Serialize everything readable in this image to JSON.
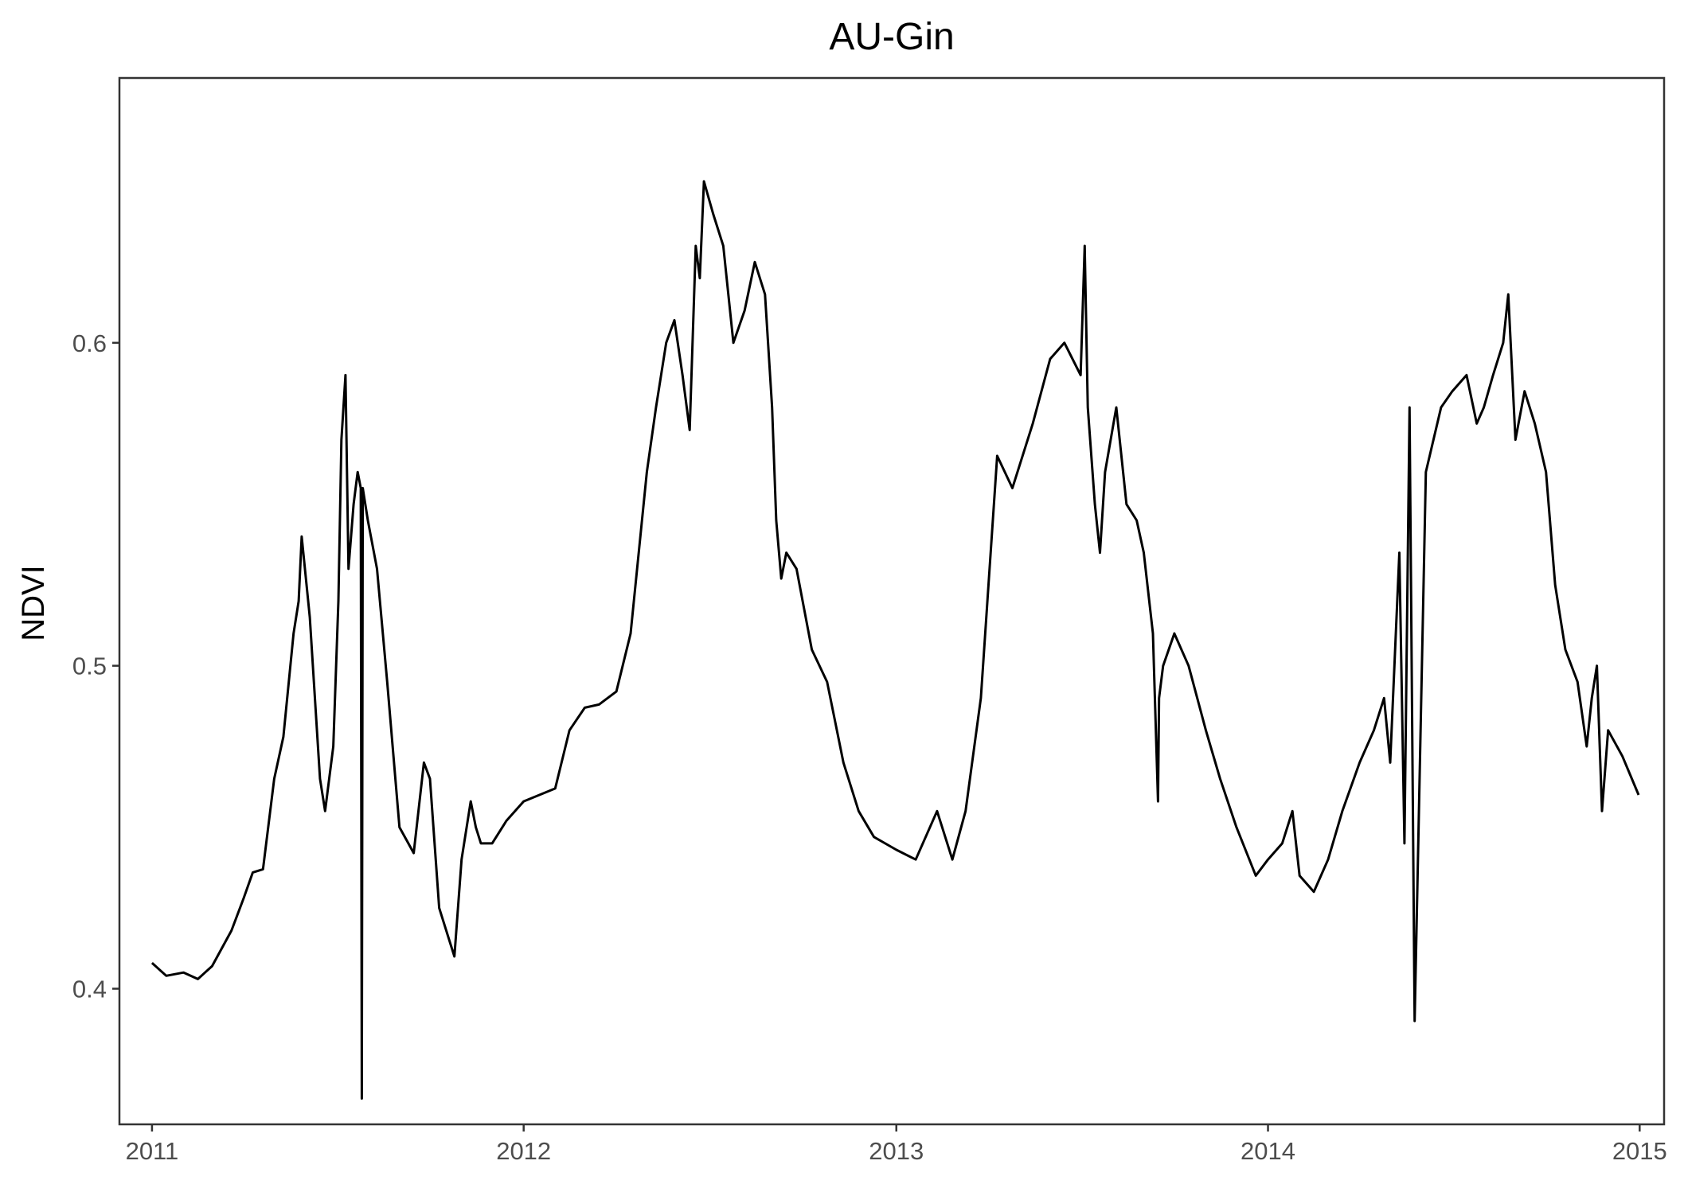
{
  "chart_data": {
    "type": "line",
    "title": "AU-Gin",
    "xlabel": "",
    "ylabel": "NDVI",
    "xlim": [
      "2010-11-30",
      "2015-01-25"
    ],
    "ylim": [
      0.358,
      0.682
    ],
    "x_ticks": [
      "2011",
      "2012",
      "2013",
      "2014",
      "2015"
    ],
    "y_ticks": [
      "0.4",
      "0.5",
      "0.6"
    ],
    "grid": false,
    "legend": "none",
    "line_color": "#000000",
    "series": [
      {
        "x": [
          "2011-01-01",
          "2011-01-15",
          "2011-02-01",
          "2011-02-15",
          "2011-03-01",
          "2011-03-20",
          "2011-04-01",
          "2011-04-10",
          "2011-04-20",
          "2011-05-01",
          "2011-05-10",
          "2011-05-20",
          "2011-05-25",
          "2011-05-28",
          "2011-06-05",
          "2011-06-15",
          "2011-06-20",
          "2011-06-28",
          "2011-07-03",
          "2011-07-06",
          "2011-07-10",
          "2011-07-13",
          "2011-07-18",
          "2011-07-22",
          "2011-07-25",
          "2011-07-26",
          "2011-07-27",
          "2011-08-01",
          "2011-08-10",
          "2011-08-20",
          "2011-09-01",
          "2011-09-15",
          "2011-09-25",
          "2011-10-01",
          "2011-10-10",
          "2011-10-20",
          "2011-10-25",
          "2011-11-01",
          "2011-11-10",
          "2011-11-15",
          "2011-11-20",
          "2011-12-01",
          "2011-12-15",
          "2012-01-01",
          "2012-02-01",
          "2012-02-15",
          "2012-03-01",
          "2012-03-15",
          "2012-04-01",
          "2012-04-15",
          "2012-05-01",
          "2012-05-10",
          "2012-05-20",
          "2012-05-28",
          "2012-06-05",
          "2012-06-12",
          "2012-06-18",
          "2012-06-22",
          "2012-06-26",
          "2012-07-05",
          "2012-07-15",
          "2012-07-25",
          "2012-08-05",
          "2012-08-15",
          "2012-08-25",
          "2012-09-01",
          "2012-09-05",
          "2012-09-10",
          "2012-09-15",
          "2012-09-25",
          "2012-10-10",
          "2012-10-25",
          "2012-11-10",
          "2012-11-25",
          "2012-12-10",
          "2013-01-01",
          "2013-01-20",
          "2013-02-10",
          "2013-02-25",
          "2013-03-10",
          "2013-03-25",
          "2013-04-10",
          "2013-04-25",
          "2013-05-15",
          "2013-06-01",
          "2013-06-15",
          "2013-07-01",
          "2013-07-05",
          "2013-07-08",
          "2013-07-15",
          "2013-07-20",
          "2013-07-25",
          "2013-08-05",
          "2013-08-15",
          "2013-08-25",
          "2013-09-01",
          "2013-09-10",
          "2013-09-15",
          "2013-09-16",
          "2013-09-20",
          "2013-10-01",
          "2013-10-15",
          "2013-11-01",
          "2013-11-15",
          "2013-12-01",
          "2013-12-20",
          "2014-01-01",
          "2014-01-15",
          "2014-01-25",
          "2014-02-01",
          "2014-02-15",
          "2014-03-01",
          "2014-03-15",
          "2014-04-01",
          "2014-04-15",
          "2014-04-25",
          "2014-05-01",
          "2014-05-10",
          "2014-05-15",
          "2014-05-20",
          "2014-05-25",
          "2014-06-05",
          "2014-06-20",
          "2014-07-01",
          "2014-07-15",
          "2014-07-25",
          "2014-08-01",
          "2014-08-10",
          "2014-08-20",
          "2014-08-25",
          "2014-09-01",
          "2014-09-10",
          "2014-09-20",
          "2014-10-01",
          "2014-10-10",
          "2014-10-20",
          "2014-11-01",
          "2014-11-10",
          "2014-11-15",
          "2014-11-20",
          "2014-11-25",
          "2014-12-01",
          "2014-12-15",
          "2014-12-31"
        ],
        "y": [
          0.408,
          0.404,
          0.405,
          0.403,
          0.407,
          0.418,
          0.428,
          0.436,
          0.437,
          0.465,
          0.478,
          0.51,
          0.52,
          0.54,
          0.515,
          0.465,
          0.455,
          0.475,
          0.52,
          0.57,
          0.59,
          0.53,
          0.55,
          0.56,
          0.555,
          0.366,
          0.555,
          0.545,
          0.53,
          0.495,
          0.45,
          0.442,
          0.47,
          0.465,
          0.425,
          0.415,
          0.41,
          0.44,
          0.458,
          0.45,
          0.445,
          0.445,
          0.452,
          0.458,
          0.462,
          0.48,
          0.487,
          0.488,
          0.492,
          0.51,
          0.56,
          0.58,
          0.6,
          0.607,
          0.59,
          0.573,
          0.63,
          0.62,
          0.65,
          0.64,
          0.63,
          0.6,
          0.61,
          0.625,
          0.615,
          0.58,
          0.545,
          0.527,
          0.535,
          0.53,
          0.505,
          0.495,
          0.47,
          0.455,
          0.447,
          0.443,
          0.44,
          0.455,
          0.44,
          0.455,
          0.49,
          0.565,
          0.555,
          0.575,
          0.595,
          0.6,
          0.59,
          0.63,
          0.58,
          0.55,
          0.535,
          0.56,
          0.58,
          0.55,
          0.545,
          0.535,
          0.51,
          0.458,
          0.49,
          0.5,
          0.51,
          0.5,
          0.48,
          0.465,
          0.45,
          0.435,
          0.44,
          0.445,
          0.455,
          0.435,
          0.43,
          0.44,
          0.455,
          0.47,
          0.48,
          0.49,
          0.47,
          0.535,
          0.445,
          0.58,
          0.39,
          0.56,
          0.58,
          0.585,
          0.59,
          0.575,
          0.58,
          0.59,
          0.6,
          0.615,
          0.57,
          0.585,
          0.575,
          0.56,
          0.525,
          0.505,
          0.495,
          0.475,
          0.49,
          0.5,
          0.455,
          0.48,
          0.472,
          0.46
        ]
      }
    ]
  }
}
